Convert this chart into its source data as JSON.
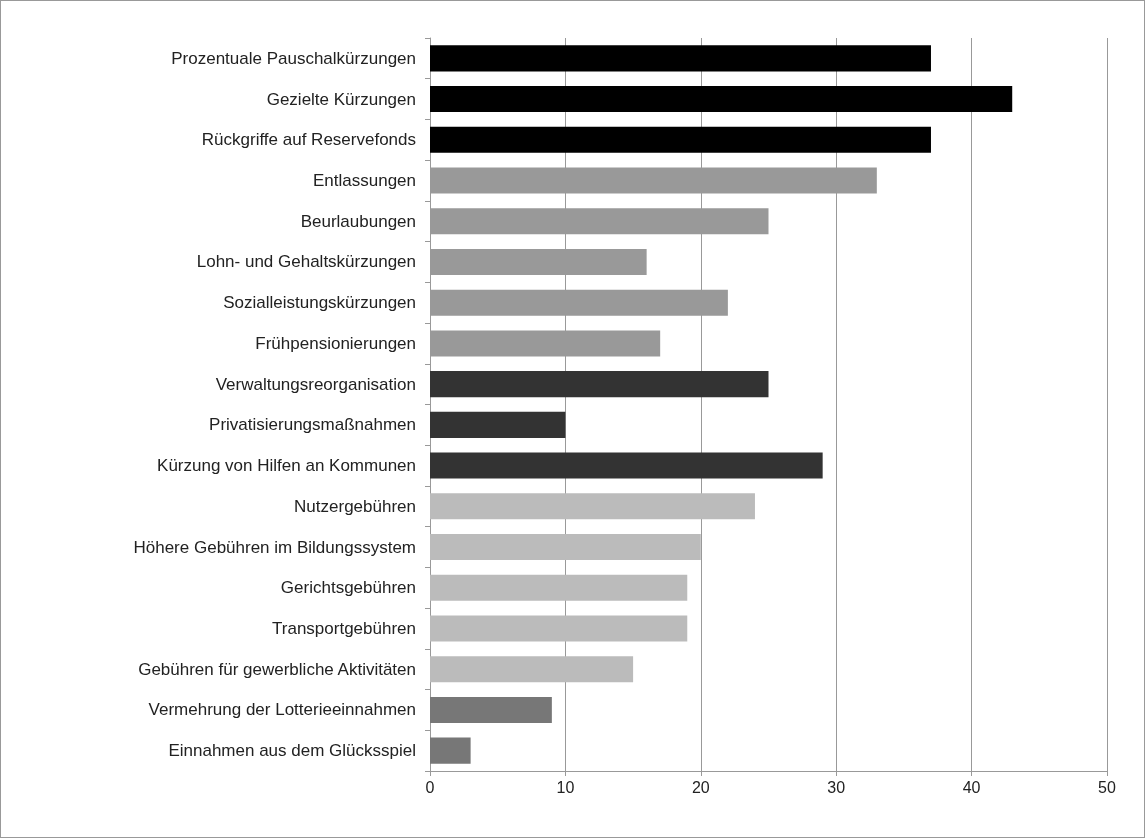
{
  "chart_data": {
    "type": "bar",
    "orientation": "horizontal",
    "categories": [
      "Prozentuale Pauschalkürzungen",
      "Gezielte Kürzungen",
      "Rückgriffe auf Reservefonds",
      "Entlassungen",
      "Beurlaubungen",
      "Lohn- und Gehaltskürzungen",
      "Sozialleistungskürzungen",
      "Frühpensionierungen",
      "Verwaltungsreorganisation",
      "Privatisierungsmaßnahmen",
      "Kürzung von Hilfen an Kommunen",
      "Nutzergebühren",
      "Höhere Gebühren im Bildungssystem",
      "Gerichtsgebühren",
      "Transportgebühren",
      "Gebühren für gewerbliche Aktivitäten",
      "Vermehrung der Lotterieeinnahmen",
      "Einnahmen aus dem Glücksspiel"
    ],
    "values": [
      37,
      43,
      37,
      33,
      25,
      16,
      22,
      17,
      25,
      10,
      29,
      24,
      20,
      19,
      19,
      15,
      9,
      3
    ],
    "colors": [
      "#000000",
      "#000000",
      "#000000",
      "#999999",
      "#999999",
      "#999999",
      "#999999",
      "#999999",
      "#333333",
      "#333333",
      "#333333",
      "#bbbbbb",
      "#bbbbbb",
      "#bbbbbb",
      "#bbbbbb",
      "#bbbbbb",
      "#777777",
      "#777777"
    ],
    "xlim": [
      0,
      50
    ],
    "xticks": [
      0,
      10,
      20,
      30,
      40,
      50
    ],
    "grid": "x"
  }
}
